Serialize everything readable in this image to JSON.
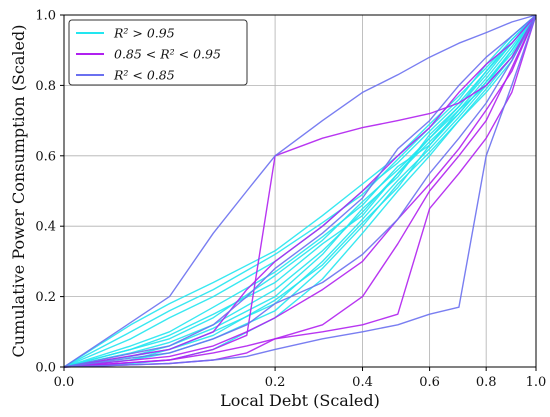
{
  "chart_data": {
    "type": "line",
    "xlabel": "Local Debt (Scaled)",
    "ylabel": "Cumulative Power Consumption (Scaled)",
    "xlim": [
      0,
      1
    ],
    "ylim": [
      0,
      1
    ],
    "x_scale": "sqrt",
    "x_ticks": [
      0.0,
      0.2,
      0.4,
      0.6,
      0.8,
      1.0
    ],
    "x_tick_labels": [
      "0.0",
      "0.2",
      "0.4",
      "0.6",
      "0.8",
      "1.0"
    ],
    "y_ticks": [
      0.0,
      0.2,
      0.4,
      0.6,
      0.8,
      1.0
    ],
    "y_tick_labels": [
      "0.0",
      "0.2",
      "0.4",
      "0.6",
      "0.8",
      "1.0"
    ],
    "grid": true,
    "legend_position": "top-left",
    "legend": [
      {
        "label": "R^2 > 0.95",
        "display": "R² > 0.95",
        "color": "#22e6f0"
      },
      {
        "label": "0.85 < R^2 < 0.95",
        "display": "0.85 < R² < 0.95",
        "color": "#b020f0"
      },
      {
        "label": "R^2 < 0.85",
        "display": "R² < 0.85",
        "color": "#6a70f0"
      }
    ],
    "series": [
      {
        "group": "R^2 > 0.95",
        "x": [
          0.0,
          0.02,
          0.05,
          0.1,
          0.2,
          0.3,
          0.4,
          0.5,
          0.6,
          0.7,
          0.8,
          0.9,
          1.0
        ],
        "y": [
          0.0,
          0.05,
          0.08,
          0.14,
          0.26,
          0.36,
          0.47,
          0.56,
          0.65,
          0.73,
          0.82,
          0.91,
          1.0
        ]
      },
      {
        "group": "R^2 > 0.95",
        "x": [
          0.0,
          0.02,
          0.05,
          0.1,
          0.2,
          0.3,
          0.4,
          0.5,
          0.6,
          0.7,
          0.8,
          0.9,
          1.0
        ],
        "y": [
          0.0,
          0.02,
          0.05,
          0.1,
          0.18,
          0.3,
          0.42,
          0.53,
          0.62,
          0.71,
          0.8,
          0.9,
          1.0
        ]
      },
      {
        "group": "R^2 > 0.95",
        "x": [
          0.0,
          0.02,
          0.05,
          0.1,
          0.2,
          0.3,
          0.4,
          0.5,
          0.6,
          0.7,
          0.8,
          0.9,
          1.0
        ],
        "y": [
          0.0,
          0.08,
          0.14,
          0.2,
          0.3,
          0.4,
          0.5,
          0.58,
          0.67,
          0.75,
          0.84,
          0.92,
          1.0
        ]
      },
      {
        "group": "R^2 > 0.95",
        "x": [
          0.0,
          0.02,
          0.05,
          0.1,
          0.2,
          0.3,
          0.4,
          0.5,
          0.6,
          0.7,
          0.8,
          0.9,
          1.0
        ],
        "y": [
          0.0,
          0.01,
          0.02,
          0.05,
          0.14,
          0.25,
          0.38,
          0.5,
          0.6,
          0.7,
          0.79,
          0.88,
          1.0
        ]
      },
      {
        "group": "R^2 > 0.95",
        "x": [
          0.0,
          0.02,
          0.05,
          0.1,
          0.2,
          0.3,
          0.4,
          0.5,
          0.6,
          0.7,
          0.8,
          0.9,
          1.0
        ],
        "y": [
          0.0,
          0.12,
          0.18,
          0.24,
          0.33,
          0.43,
          0.52,
          0.6,
          0.69,
          0.77,
          0.85,
          0.93,
          1.0
        ]
      },
      {
        "group": "R^2 > 0.95",
        "x": [
          0.0,
          0.02,
          0.05,
          0.1,
          0.2,
          0.3,
          0.4,
          0.5,
          0.6,
          0.7,
          0.8,
          0.9,
          1.0
        ],
        "y": [
          0.0,
          0.04,
          0.07,
          0.12,
          0.22,
          0.33,
          0.44,
          0.55,
          0.64,
          0.72,
          0.81,
          0.9,
          1.0
        ]
      },
      {
        "group": "R^2 > 0.95",
        "x": [
          0.0,
          0.02,
          0.05,
          0.1,
          0.2,
          0.3,
          0.4,
          0.5,
          0.6,
          0.7,
          0.8,
          0.9,
          1.0
        ],
        "y": [
          0.0,
          0.03,
          0.06,
          0.11,
          0.2,
          0.32,
          0.45,
          0.54,
          0.66,
          0.74,
          0.83,
          0.92,
          1.0
        ]
      },
      {
        "group": "R^2 > 0.95",
        "x": [
          0.0,
          0.02,
          0.05,
          0.1,
          0.2,
          0.3,
          0.4,
          0.5,
          0.6,
          0.7,
          0.8,
          0.9,
          1.0
        ],
        "y": [
          0.0,
          0.06,
          0.1,
          0.17,
          0.27,
          0.37,
          0.46,
          0.57,
          0.63,
          0.72,
          0.81,
          0.89,
          1.0
        ]
      },
      {
        "group": "R^2 > 0.95",
        "x": [
          0.0,
          0.02,
          0.05,
          0.1,
          0.2,
          0.3,
          0.4,
          0.5,
          0.6,
          0.7,
          0.8,
          0.9,
          1.0
        ],
        "y": [
          0.0,
          0.02,
          0.04,
          0.08,
          0.16,
          0.28,
          0.4,
          0.52,
          0.61,
          0.7,
          0.78,
          0.87,
          1.0
        ]
      },
      {
        "group": "R^2 > 0.95",
        "x": [
          0.0,
          0.02,
          0.05,
          0.1,
          0.2,
          0.3,
          0.4,
          0.5,
          0.6,
          0.7,
          0.8,
          0.9,
          1.0
        ],
        "y": [
          0.0,
          0.1,
          0.16,
          0.22,
          0.32,
          0.41,
          0.49,
          0.59,
          0.68,
          0.76,
          0.86,
          0.94,
          1.0
        ]
      },
      {
        "group": "R^2 > 0.95",
        "x": [
          0.0,
          0.02,
          0.05,
          0.1,
          0.2,
          0.3,
          0.4,
          0.5,
          0.6,
          0.7,
          0.8,
          0.9,
          1.0
        ],
        "y": [
          0.0,
          0.05,
          0.09,
          0.15,
          0.24,
          0.35,
          0.43,
          0.55,
          0.65,
          0.74,
          0.84,
          0.93,
          1.0
        ]
      },
      {
        "group": "R^2 > 0.95",
        "x": [
          0.0,
          0.02,
          0.05,
          0.1,
          0.2,
          0.3,
          0.4,
          0.5,
          0.6,
          0.7,
          0.8,
          0.9,
          1.0
        ],
        "y": [
          0.0,
          0.03,
          0.05,
          0.09,
          0.19,
          0.29,
          0.41,
          0.51,
          0.63,
          0.73,
          0.8,
          0.88,
          1.0
        ]
      },
      {
        "group": "0.85 < R^2 < 0.95",
        "x": [
          0.0,
          0.05,
          0.1,
          0.15,
          0.2,
          0.3,
          0.4,
          0.5,
          0.6,
          0.7,
          0.8,
          0.9,
          1.0
        ],
        "y": [
          0.0,
          0.05,
          0.1,
          0.22,
          0.3,
          0.4,
          0.5,
          0.6,
          0.68,
          0.78,
          0.86,
          0.92,
          1.0
        ]
      },
      {
        "group": "0.85 < R^2 < 0.95",
        "x": [
          0.0,
          0.05,
          0.1,
          0.15,
          0.2,
          0.3,
          0.4,
          0.5,
          0.6,
          0.7,
          0.8,
          0.9,
          1.0
        ],
        "y": [
          0.0,
          0.02,
          0.05,
          0.09,
          0.6,
          0.65,
          0.68,
          0.7,
          0.72,
          0.75,
          0.8,
          0.88,
          1.0
        ]
      },
      {
        "group": "0.85 < R^2 < 0.95",
        "x": [
          0.0,
          0.05,
          0.1,
          0.15,
          0.2,
          0.3,
          0.4,
          0.5,
          0.6,
          0.7,
          0.8,
          0.9,
          1.0
        ],
        "y": [
          0.0,
          0.01,
          0.02,
          0.04,
          0.08,
          0.12,
          0.2,
          0.35,
          0.5,
          0.6,
          0.7,
          0.85,
          1.0
        ]
      },
      {
        "group": "0.85 < R^2 < 0.95",
        "x": [
          0.0,
          0.05,
          0.1,
          0.15,
          0.2,
          0.3,
          0.4,
          0.5,
          0.6,
          0.7,
          0.8,
          0.9,
          1.0
        ],
        "y": [
          0.0,
          0.02,
          0.04,
          0.06,
          0.08,
          0.1,
          0.12,
          0.15,
          0.45,
          0.55,
          0.65,
          0.78,
          1.0
        ]
      },
      {
        "group": "0.85 < R^2 < 0.95",
        "x": [
          0.0,
          0.05,
          0.1,
          0.15,
          0.2,
          0.3,
          0.4,
          0.5,
          0.6,
          0.7,
          0.8,
          0.9,
          1.0
        ],
        "y": [
          0.0,
          0.03,
          0.06,
          0.1,
          0.14,
          0.22,
          0.3,
          0.42,
          0.52,
          0.62,
          0.73,
          0.84,
          1.0
        ]
      },
      {
        "group": "R^2 < 0.85",
        "x": [
          0.0,
          0.05,
          0.1,
          0.15,
          0.2,
          0.3,
          0.4,
          0.5,
          0.6,
          0.7,
          0.8,
          0.9,
          1.0
        ],
        "y": [
          0.0,
          0.2,
          0.38,
          0.5,
          0.6,
          0.7,
          0.78,
          0.83,
          0.88,
          0.92,
          0.95,
          0.98,
          1.0
        ]
      },
      {
        "group": "R^2 < 0.85",
        "x": [
          0.0,
          0.05,
          0.1,
          0.15,
          0.2,
          0.3,
          0.4,
          0.5,
          0.6,
          0.7,
          0.8,
          0.9,
          1.0
        ],
        "y": [
          0.0,
          0.01,
          0.02,
          0.03,
          0.05,
          0.08,
          0.1,
          0.12,
          0.15,
          0.17,
          0.6,
          0.8,
          1.0
        ]
      },
      {
        "group": "R^2 < 0.85",
        "x": [
          0.0,
          0.05,
          0.1,
          0.15,
          0.2,
          0.3,
          0.4,
          0.5,
          0.6,
          0.7,
          0.8,
          0.9,
          1.0
        ],
        "y": [
          0.0,
          0.04,
          0.08,
          0.12,
          0.18,
          0.24,
          0.32,
          0.42,
          0.55,
          0.65,
          0.75,
          0.87,
          1.0
        ]
      },
      {
        "group": "R^2 < 0.85",
        "x": [
          0.0,
          0.05,
          0.1,
          0.15,
          0.2,
          0.3,
          0.4,
          0.5,
          0.6,
          0.7,
          0.8,
          0.9,
          1.0
        ],
        "y": [
          0.0,
          0.06,
          0.12,
          0.2,
          0.28,
          0.38,
          0.48,
          0.62,
          0.7,
          0.8,
          0.88,
          0.94,
          1.0
        ]
      }
    ]
  }
}
